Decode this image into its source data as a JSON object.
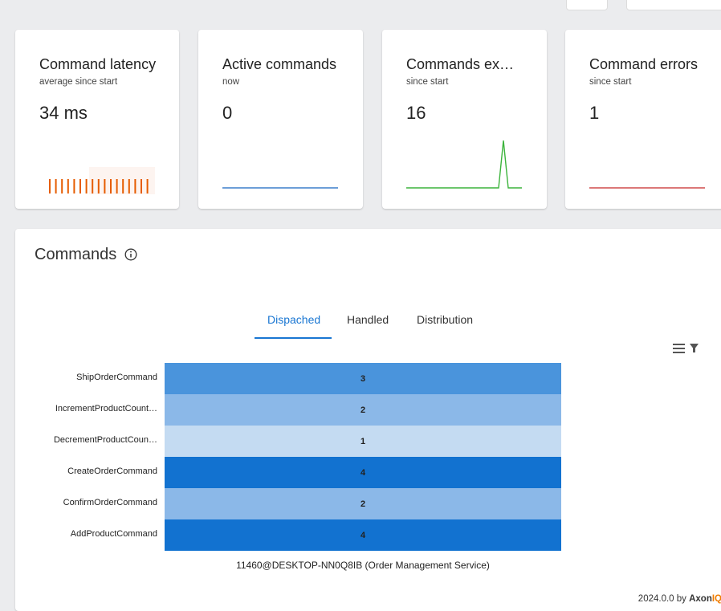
{
  "cards": [
    {
      "title": "Command latency",
      "subtitle": "average since start",
      "value": "34 ms",
      "color": "#e65c00"
    },
    {
      "title": "Active commands",
      "subtitle": "now",
      "value": "0",
      "color": "#1565c0"
    },
    {
      "title": "Commands executed",
      "subtitle": "since start",
      "value": "16",
      "color": "#3cb43c"
    },
    {
      "title": "Command errors",
      "subtitle": "since start",
      "value": "1",
      "color": "#c62828"
    }
  ],
  "panel": {
    "title": "Commands",
    "tabs": [
      {
        "label": "Dispached"
      },
      {
        "label": "Handled"
      },
      {
        "label": "Distribution"
      }
    ],
    "active_tab": "Dispached"
  },
  "chart_data": {
    "type": "heatmap",
    "rows": [
      "ShipOrderCommand",
      "IncrementProductCount…",
      "DecrementProductCoun…",
      "CreateOrderCommand",
      "ConfirmOrderCommand",
      "AddProductCommand"
    ],
    "columns": [
      "11460@DESKTOP-NN0Q8IB (Order Management Service)"
    ],
    "values": [
      [
        3
      ],
      [
        2
      ],
      [
        1
      ],
      [
        4
      ],
      [
        2
      ],
      [
        4
      ]
    ],
    "colors": {
      "1": "#c4dbf2",
      "2": "#8bb8e8",
      "3": "#4a94dc",
      "4": "#1272d0"
    }
  },
  "footer": {
    "version": "2024.0.0 by ",
    "brand": "Axon",
    "brand_accent": "IQ"
  }
}
